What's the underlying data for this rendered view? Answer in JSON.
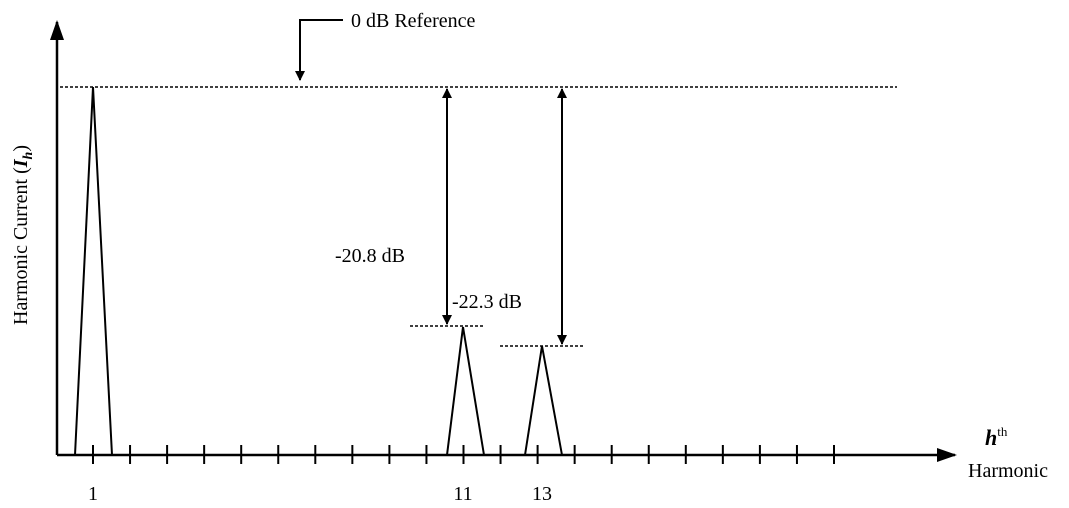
{
  "reference_label": "0 dB Reference",
  "y_axis_label": {
    "text": "Harmonic Current (",
    "symbol": "I",
    "subscript": "h",
    "close": ")"
  },
  "x_axis_label": {
    "symbol": "h",
    "superscript": "th",
    "text": "Harmonic"
  },
  "tick_labels": [
    "1",
    "11",
    "13"
  ],
  "annotations": [
    "-20.8 dB",
    "-22.3 dB"
  ]
}
